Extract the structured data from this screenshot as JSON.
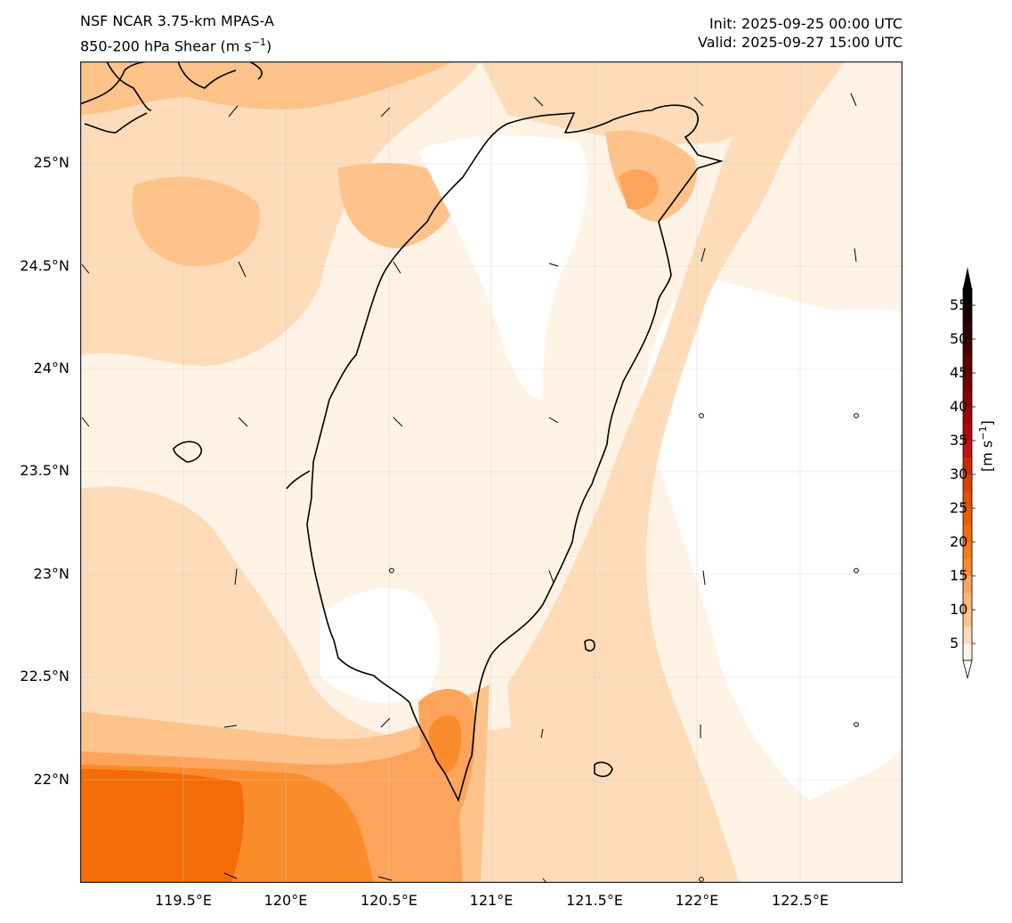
{
  "header": {
    "model": "NSF NCAR 3.75-km MPAS-A",
    "field_main": "850-200 hPa Shear (m s",
    "field_exp": "−1",
    "field_close": ")",
    "init": "Init: 2025-09-25 00:00 UTC",
    "valid": "Valid: 2025-09-27 15:00 UTC"
  },
  "map": {
    "lat_range": [
      21.5,
      25.5
    ],
    "lon_range": [
      119.0,
      123.0
    ],
    "lat_ticks": [
      "25°N",
      "24.5°N",
      "24°N",
      "23.5°N",
      "23°N",
      "22.5°N",
      "22°N"
    ],
    "lon_ticks": [
      "119.5°E",
      "120°E",
      "120.5°E",
      "121°E",
      "121.5°E",
      "122°E",
      "122.5°E"
    ],
    "grid": true,
    "colors": {
      "lvl0": "#ffffff",
      "lvl1": "#fff3e6",
      "lvl2": "#fedcb9",
      "lvl3": "#fdc38a",
      "lvl4": "#fda45c",
      "lvl5": "#fb8c2c",
      "lvl6": "#f46c07",
      "land_outline": "#000000"
    }
  },
  "colorbar": {
    "title_main": "[m s",
    "title_exp": "−1",
    "title_close": "]",
    "labels": [
      "5",
      "10",
      "15",
      "20",
      "25",
      "30",
      "35",
      "40",
      "45",
      "50",
      "55"
    ],
    "extend": "both"
  }
}
